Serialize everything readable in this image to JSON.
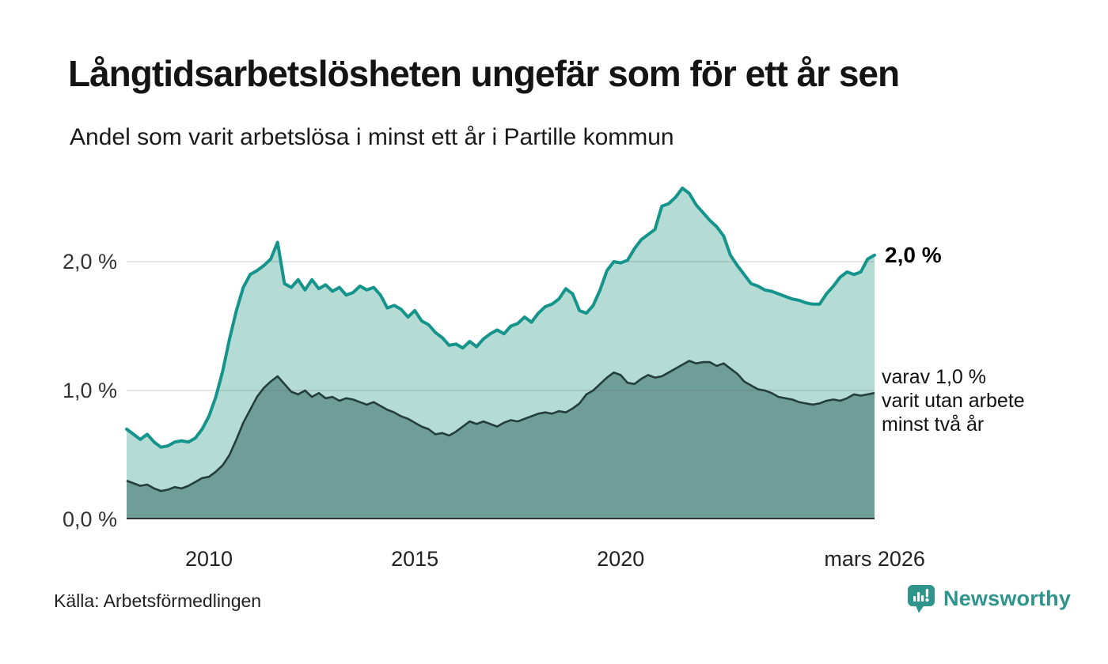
{
  "colors": {
    "background": "#ffffff",
    "line_one_year": "#14948b",
    "fill_one_year": "#b5dbd5",
    "line_two_years": "#243f3b",
    "fill_two_years": "#6f9d98",
    "gridline": "#e3e3e3",
    "axis": "#333333",
    "brand_teal": "#2f948c"
  },
  "footer": {
    "brand": "Newsworthy"
  },
  "chart_data": {
    "type": "area",
    "title": "Långtidsarbetslösheten ungefär som för ett år sen",
    "subtitle": "Andel som varit arbetslösa i minst ett år i Partille kommun",
    "source": "Källa: Arbetsförmedlingen",
    "x_unit": "year (decimal, ~monthly series sampled every 2 months)",
    "x_start": 2008.0,
    "x_step": 0.166667,
    "x_end": 2026.1667,
    "ylim": [
      0,
      2.65
    ],
    "ylabel": "%",
    "grid": "horizontal",
    "legend": "end-of-line annotations",
    "yticks": [
      {
        "value": 0,
        "label": "0,0 %"
      },
      {
        "value": 1,
        "label": "1,0 %"
      },
      {
        "value": 2,
        "label": "2,0 %"
      }
    ],
    "xticks": [
      {
        "year": 2010,
        "label": "2010"
      },
      {
        "year": 2015,
        "label": "2015"
      },
      {
        "year": 2020,
        "label": "2020"
      },
      {
        "year": 2026.17,
        "label": "mars 2026"
      }
    ],
    "series": [
      {
        "name": "Andel som varit arbetslösa i minst ett år",
        "color": "#14948b",
        "fill": "#b5dbd5",
        "end_value_pct": 2.0,
        "values": [
          0.7,
          0.66,
          0.62,
          0.66,
          0.6,
          0.56,
          0.57,
          0.6,
          0.61,
          0.6,
          0.63,
          0.7,
          0.8,
          0.95,
          1.15,
          1.4,
          1.62,
          1.8,
          1.9,
          1.93,
          1.97,
          2.02,
          2.15,
          1.83,
          1.8,
          1.86,
          1.78,
          1.86,
          1.79,
          1.82,
          1.77,
          1.8,
          1.74,
          1.76,
          1.81,
          1.78,
          1.8,
          1.74,
          1.64,
          1.66,
          1.63,
          1.57,
          1.62,
          1.54,
          1.51,
          1.45,
          1.41,
          1.35,
          1.36,
          1.33,
          1.38,
          1.34,
          1.4,
          1.44,
          1.47,
          1.44,
          1.5,
          1.52,
          1.57,
          1.53,
          1.6,
          1.65,
          1.67,
          1.71,
          1.79,
          1.75,
          1.62,
          1.6,
          1.66,
          1.78,
          1.93,
          2.0,
          1.99,
          2.01,
          2.1,
          2.17,
          2.21,
          2.25,
          2.43,
          2.45,
          2.5,
          2.57,
          2.53,
          2.44,
          2.38,
          2.32,
          2.27,
          2.2,
          2.05,
          1.97,
          1.9,
          1.83,
          1.81,
          1.78,
          1.77,
          1.75,
          1.73,
          1.71,
          1.7,
          1.68,
          1.67,
          1.67,
          1.75,
          1.81,
          1.88,
          1.92,
          1.9,
          1.92,
          2.02,
          2.05
        ]
      },
      {
        "name": "varav varit utan arbete minst två år",
        "color": "#243f3b",
        "fill": "#6f9d98",
        "end_value_pct": 1.0,
        "values": [
          0.3,
          0.28,
          0.26,
          0.27,
          0.24,
          0.22,
          0.23,
          0.25,
          0.24,
          0.26,
          0.29,
          0.32,
          0.33,
          0.37,
          0.42,
          0.5,
          0.62,
          0.75,
          0.85,
          0.95,
          1.02,
          1.07,
          1.11,
          1.05,
          0.99,
          0.97,
          1.0,
          0.95,
          0.98,
          0.94,
          0.95,
          0.92,
          0.94,
          0.93,
          0.91,
          0.89,
          0.91,
          0.88,
          0.85,
          0.83,
          0.8,
          0.78,
          0.75,
          0.72,
          0.7,
          0.66,
          0.67,
          0.65,
          0.68,
          0.72,
          0.76,
          0.74,
          0.76,
          0.74,
          0.72,
          0.75,
          0.77,
          0.76,
          0.78,
          0.8,
          0.82,
          0.83,
          0.82,
          0.84,
          0.83,
          0.86,
          0.9,
          0.97,
          1.0,
          1.05,
          1.1,
          1.14,
          1.12,
          1.06,
          1.05,
          1.09,
          1.12,
          1.1,
          1.11,
          1.14,
          1.17,
          1.2,
          1.23,
          1.21,
          1.22,
          1.22,
          1.19,
          1.21,
          1.17,
          1.13,
          1.07,
          1.04,
          1.01,
          1.0,
          0.98,
          0.95,
          0.94,
          0.93,
          0.91,
          0.9,
          0.89,
          0.9,
          0.92,
          0.93,
          0.92,
          0.94,
          0.97,
          0.96,
          0.97,
          0.98
        ]
      }
    ],
    "end_labels": {
      "total": "2,0 %",
      "sub": "varav 1,0 %\nvarit utan arbete\nminst två år"
    }
  }
}
